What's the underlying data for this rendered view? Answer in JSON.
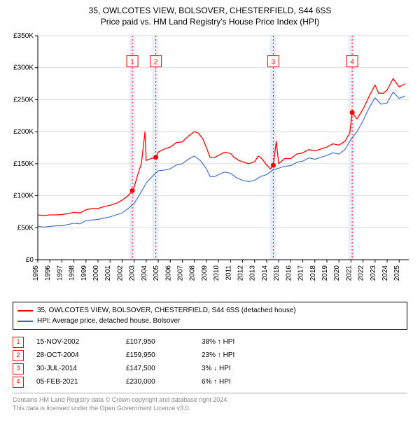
{
  "title_line1": "35, OWLCOTES VIEW, BOLSOVER, CHESTERFIELD, S44 6SS",
  "title_line2": "Price paid vs. HM Land Registry's House Price Index (HPI)",
  "chart": {
    "type": "line",
    "background_color": "#ffffff",
    "grid_color": "#d9d9d9",
    "band_color": "#e9eefb",
    "axis_color": "#000000",
    "xlim": [
      1995,
      2025.8
    ],
    "ylim": [
      0,
      350000
    ],
    "ytick_step": 50000,
    "yticks_labels": [
      "£0",
      "£50K",
      "£100K",
      "£150K",
      "£200K",
      "£250K",
      "£300K",
      "£350K"
    ],
    "xticks": [
      1995,
      1996,
      1997,
      1998,
      1999,
      2000,
      2001,
      2002,
      2003,
      2004,
      2005,
      2006,
      2007,
      2008,
      2009,
      2010,
      2011,
      2012,
      2013,
      2014,
      2015,
      2016,
      2017,
      2018,
      2019,
      2020,
      2021,
      2022,
      2023,
      2024,
      2025
    ],
    "bands": [
      {
        "from": 2002.6,
        "to": 2003.1
      },
      {
        "from": 2004.5,
        "to": 2005.0
      },
      {
        "from": 2014.3,
        "to": 2014.8
      },
      {
        "from": 2020.8,
        "to": 2021.3
      }
    ],
    "series": [
      {
        "name": "price_paid",
        "label": "35, OWLCOTES VIEW, BOLSOVER, CHESTERFIELD, S44 6SS (detached house)",
        "color": "#ff0000",
        "line_width": 1.3,
        "points": [
          [
            1995,
            70000
          ],
          [
            1995.5,
            69000
          ],
          [
            1996,
            70000
          ],
          [
            1996.5,
            70000
          ],
          [
            1997,
            70500
          ],
          [
            1997.5,
            72000
          ],
          [
            1998,
            74000
          ],
          [
            1998.5,
            73000
          ],
          [
            1999,
            78000
          ],
          [
            1999.5,
            80000
          ],
          [
            2000,
            80000
          ],
          [
            2000.5,
            83000
          ],
          [
            2001,
            85000
          ],
          [
            2001.5,
            88000
          ],
          [
            2002,
            93000
          ],
          [
            2002.5,
            100000
          ],
          [
            2002.85,
            107950
          ],
          [
            2003,
            113000
          ],
          [
            2003.3,
            133000
          ],
          [
            2003.6,
            150000
          ],
          [
            2003.9,
            200000
          ],
          [
            2004,
            155000
          ],
          [
            2004.4,
            158000
          ],
          [
            2004.8,
            159950
          ],
          [
            2005,
            168000
          ],
          [
            2005.5,
            173000
          ],
          [
            2006,
            176000
          ],
          [
            2006.5,
            183000
          ],
          [
            2007,
            184000
          ],
          [
            2007.5,
            193000
          ],
          [
            2008,
            200000
          ],
          [
            2008.3,
            198000
          ],
          [
            2008.7,
            189000
          ],
          [
            2009,
            175000
          ],
          [
            2009.3,
            160000
          ],
          [
            2009.7,
            160000
          ],
          [
            2010,
            163000
          ],
          [
            2010.5,
            168000
          ],
          [
            2011,
            166000
          ],
          [
            2011.3,
            160000
          ],
          [
            2011.7,
            155000
          ],
          [
            2012,
            153000
          ],
          [
            2012.5,
            150000
          ],
          [
            2013,
            153000
          ],
          [
            2013.3,
            162000
          ],
          [
            2013.6,
            158000
          ],
          [
            2014,
            148000
          ],
          [
            2014.3,
            142000
          ],
          [
            2014.55,
            147500
          ],
          [
            2014.8,
            185000
          ],
          [
            2015,
            150000
          ],
          [
            2015.5,
            158000
          ],
          [
            2016,
            158000
          ],
          [
            2016.5,
            165000
          ],
          [
            2017,
            167000
          ],
          [
            2017.5,
            172000
          ],
          [
            2018,
            170000
          ],
          [
            2018.5,
            173000
          ],
          [
            2019,
            176000
          ],
          [
            2019.5,
            181000
          ],
          [
            2020,
            179000
          ],
          [
            2020.5,
            185000
          ],
          [
            2020.9,
            198000
          ],
          [
            2021.1,
            230000
          ],
          [
            2021.5,
            220000
          ],
          [
            2022,
            235000
          ],
          [
            2022.5,
            255000
          ],
          [
            2023,
            273000
          ],
          [
            2023.3,
            260000
          ],
          [
            2023.7,
            260000
          ],
          [
            2024,
            265000
          ],
          [
            2024.5,
            283000
          ],
          [
            2025,
            270000
          ],
          [
            2025.5,
            275000
          ]
        ]
      },
      {
        "name": "hpi",
        "label": "HPI: Average price, detached house, Bolsover",
        "color": "#3366cc",
        "line_width": 1.1,
        "points": [
          [
            1995,
            52000
          ],
          [
            1995.5,
            51000
          ],
          [
            1996,
            52000
          ],
          [
            1996.5,
            53000
          ],
          [
            1997,
            53000
          ],
          [
            1998,
            57000
          ],
          [
            1998.5,
            56000
          ],
          [
            1999,
            61000
          ],
          [
            1999.5,
            62000
          ],
          [
            2000,
            63000
          ],
          [
            2000.5,
            65000
          ],
          [
            2001,
            67000
          ],
          [
            2001.5,
            70000
          ],
          [
            2002,
            73000
          ],
          [
            2002.5,
            80000
          ],
          [
            2003,
            88000
          ],
          [
            2003.5,
            103000
          ],
          [
            2004,
            120000
          ],
          [
            2004.5,
            130000
          ],
          [
            2005,
            139000
          ],
          [
            2005.5,
            140000
          ],
          [
            2006,
            142000
          ],
          [
            2006.5,
            148000
          ],
          [
            2007,
            150000
          ],
          [
            2007.5,
            157000
          ],
          [
            2008,
            162000
          ],
          [
            2008.5,
            155000
          ],
          [
            2009,
            142000
          ],
          [
            2009.3,
            130000
          ],
          [
            2009.7,
            130000
          ],
          [
            2010,
            133000
          ],
          [
            2010.5,
            137000
          ],
          [
            2011,
            135000
          ],
          [
            2011.5,
            128000
          ],
          [
            2012,
            124000
          ],
          [
            2012.5,
            122000
          ],
          [
            2013,
            124000
          ],
          [
            2013.5,
            130000
          ],
          [
            2014,
            133000
          ],
          [
            2014.5,
            140000
          ],
          [
            2015,
            143000
          ],
          [
            2015.5,
            146000
          ],
          [
            2016,
            147000
          ],
          [
            2016.5,
            152000
          ],
          [
            2017,
            154000
          ],
          [
            2017.5,
            159000
          ],
          [
            2018,
            157000
          ],
          [
            2018.5,
            160000
          ],
          [
            2019,
            163000
          ],
          [
            2019.5,
            167000
          ],
          [
            2020,
            165000
          ],
          [
            2020.5,
            172000
          ],
          [
            2021,
            188000
          ],
          [
            2021.5,
            200000
          ],
          [
            2022,
            217000
          ],
          [
            2022.5,
            237000
          ],
          [
            2023,
            253000
          ],
          [
            2023.5,
            243000
          ],
          [
            2024,
            245000
          ],
          [
            2024.5,
            262000
          ],
          [
            2025,
            252000
          ],
          [
            2025.5,
            256000
          ]
        ]
      }
    ],
    "markers": [
      {
        "n": 1,
        "x": 2002.85,
        "y": 107950,
        "label_y": 310000
      },
      {
        "n": 2,
        "x": 2004.8,
        "y": 159950,
        "label_y": 310000
      },
      {
        "n": 3,
        "x": 2014.55,
        "y": 147500,
        "label_y": 310000
      },
      {
        "n": 4,
        "x": 2021.1,
        "y": 230000,
        "label_y": 310000
      }
    ],
    "marker_dot_color": "#ff0000",
    "marker_box_border": "#ff0000",
    "marker_line_color": "#ff0000",
    "marker_line_dash": "2,3",
    "axis_fontsize": 10,
    "title_fontsize": 12
  },
  "legend": {
    "rows": [
      {
        "color": "#ff0000",
        "label": "35, OWLCOTES VIEW, BOLSOVER, CHESTERFIELD, S44 6SS (detached house)"
      },
      {
        "color": "#3366cc",
        "label": "HPI: Average price, detached house, Bolsover"
      }
    ]
  },
  "events": [
    {
      "n": "1",
      "date": "15-NOV-2002",
      "price": "£107,950",
      "delta": "38% ↑ HPI"
    },
    {
      "n": "2",
      "date": "28-OCT-2004",
      "price": "£159,950",
      "delta": "23% ↑ HPI"
    },
    {
      "n": "3",
      "date": "30-JUL-2014",
      "price": "£147,500",
      "delta": "3% ↓ HPI"
    },
    {
      "n": "4",
      "date": "05-FEB-2021",
      "price": "£230,000",
      "delta": "6% ↑ HPI"
    }
  ],
  "attribution": {
    "line1": "Contains HM Land Registry data © Crown copyright and database right 2024.",
    "line2": "This data is licensed under the Open Government Licence v3.0."
  }
}
